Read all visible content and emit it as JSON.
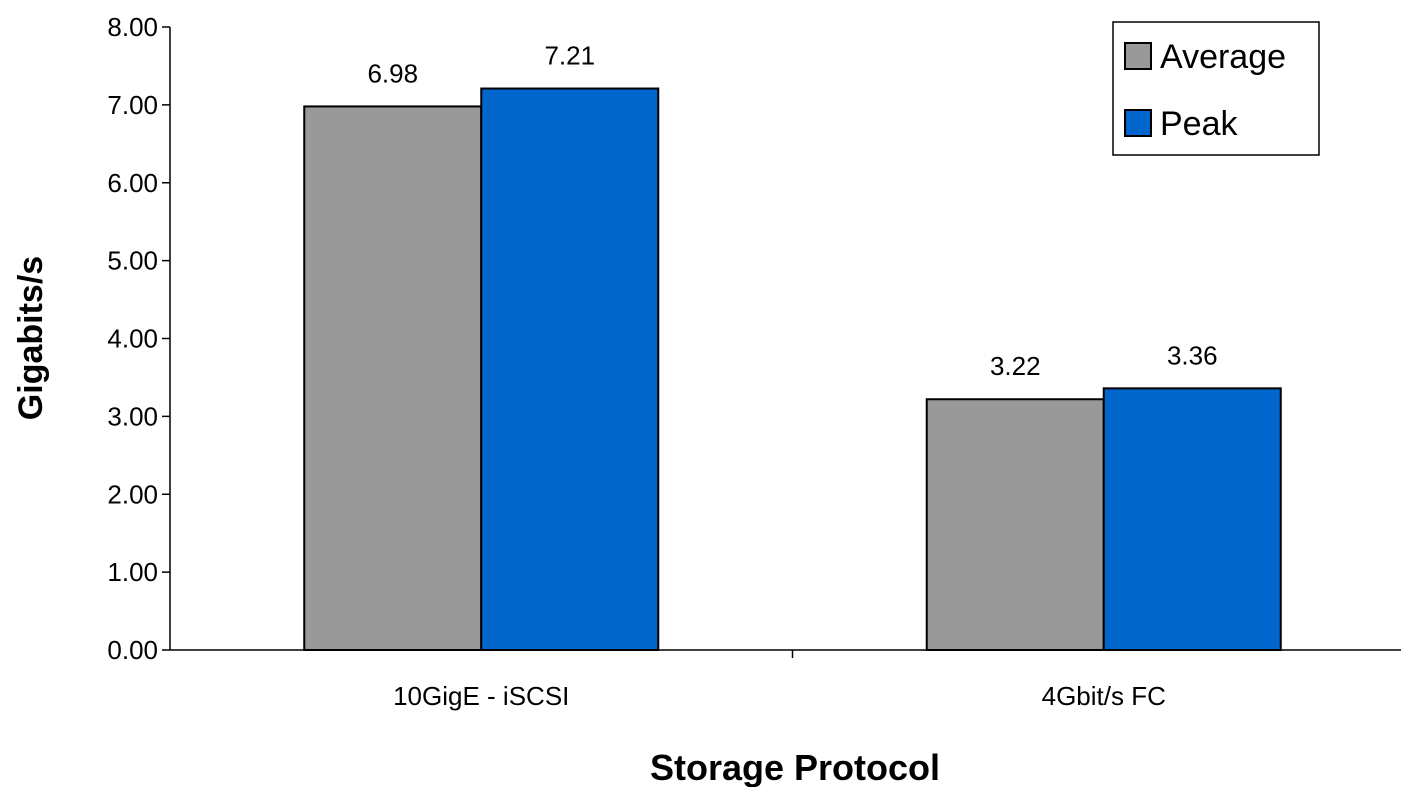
{
  "chart_data": {
    "type": "bar",
    "title": "",
    "xlabel": "Storage Protocol",
    "ylabel": "Gigabits/s",
    "categories": [
      "10GigE - iSCSI",
      "4Gbit/s FC"
    ],
    "series": [
      {
        "name": "Average",
        "values": [
          6.98,
          3.22
        ],
        "value_labels": [
          "6.98",
          "3.22"
        ],
        "color": "#999999"
      },
      {
        "name": "Peak",
        "values": [
          7.21,
          3.36
        ],
        "value_labels": [
          "7.21",
          "3.36"
        ],
        "color": "#0066CC"
      }
    ],
    "ylim": [
      0,
      8
    ],
    "yticks": [
      "0.00",
      "1.00",
      "2.00",
      "3.00",
      "4.00",
      "5.00",
      "6.00",
      "7.00",
      "8.00"
    ],
    "grid": false,
    "legend": "top-right"
  }
}
